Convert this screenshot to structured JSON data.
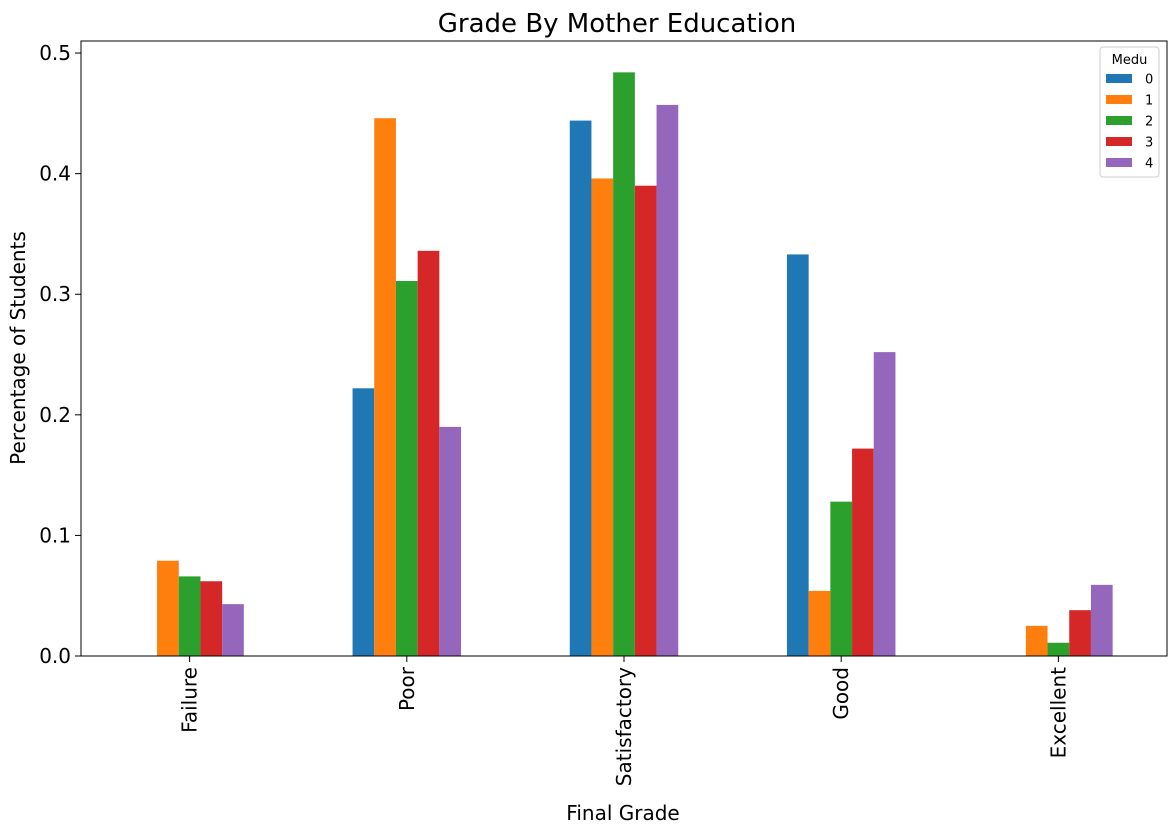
{
  "chart_data": {
    "type": "bar",
    "title": "Grade By Mother Education",
    "xlabel": "Final Grade",
    "ylabel": "Percentage of Students",
    "categories": [
      "Failure",
      "Poor",
      "Satisfactory",
      "Good",
      "Excellent"
    ],
    "ylim": [
      0,
      0.51
    ],
    "yticks": [
      0.0,
      0.1,
      0.2,
      0.3,
      0.4,
      0.5
    ],
    "ytick_labels": [
      "0.0",
      "0.1",
      "0.2",
      "0.3",
      "0.4",
      "0.5"
    ],
    "legend": {
      "title": "Medu",
      "placement": "top-right"
    },
    "grid": false,
    "series": [
      {
        "name": "0",
        "color": "#1f77b4",
        "values": [
          0.0,
          0.222,
          0.444,
          0.333,
          0.0
        ]
      },
      {
        "name": "1",
        "color": "#ff7f0e",
        "values": [
          0.079,
          0.446,
          0.396,
          0.054,
          0.025
        ]
      },
      {
        "name": "2",
        "color": "#2ca02c",
        "values": [
          0.066,
          0.311,
          0.484,
          0.128,
          0.011
        ]
      },
      {
        "name": "3",
        "color": "#d62728",
        "values": [
          0.062,
          0.336,
          0.39,
          0.172,
          0.038
        ]
      },
      {
        "name": "4",
        "color": "#9467bd",
        "values": [
          0.043,
          0.19,
          0.457,
          0.252,
          0.059
        ]
      }
    ]
  }
}
